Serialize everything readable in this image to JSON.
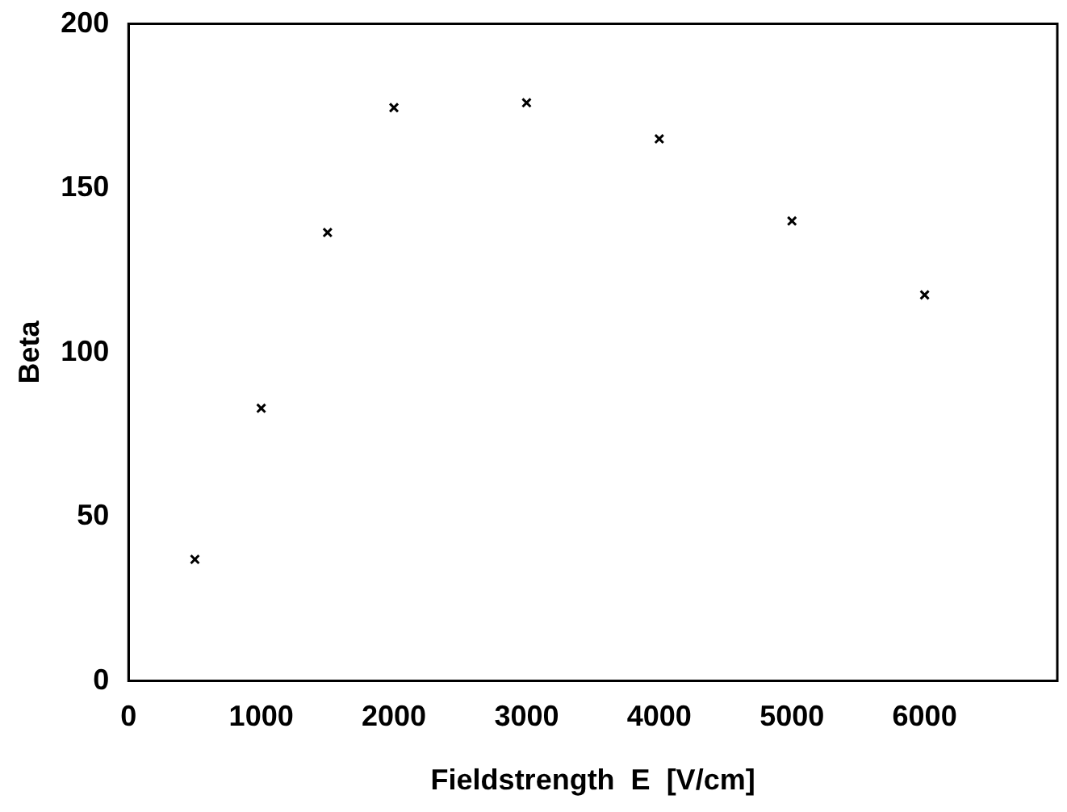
{
  "chart_data": {
    "type": "scatter",
    "xlabel": "Fieldstrength  E  [V/cm]",
    "ylabel": "Beta",
    "x": [
      500,
      1000,
      1500,
      2000,
      3000,
      4000,
      5000,
      6000
    ],
    "values": [
      37,
      83,
      136.5,
      174.5,
      176,
      165,
      140,
      117.5
    ],
    "color": "#000000",
    "marker": "cross",
    "xlim": [
      0,
      7000
    ],
    "xticks": [
      0,
      1000,
      2000,
      3000,
      4000,
      5000,
      6000
    ],
    "ylim": [
      0,
      200
    ],
    "yticks": [
      0,
      50,
      100,
      150,
      200
    ],
    "grid": false,
    "legend": false
  }
}
